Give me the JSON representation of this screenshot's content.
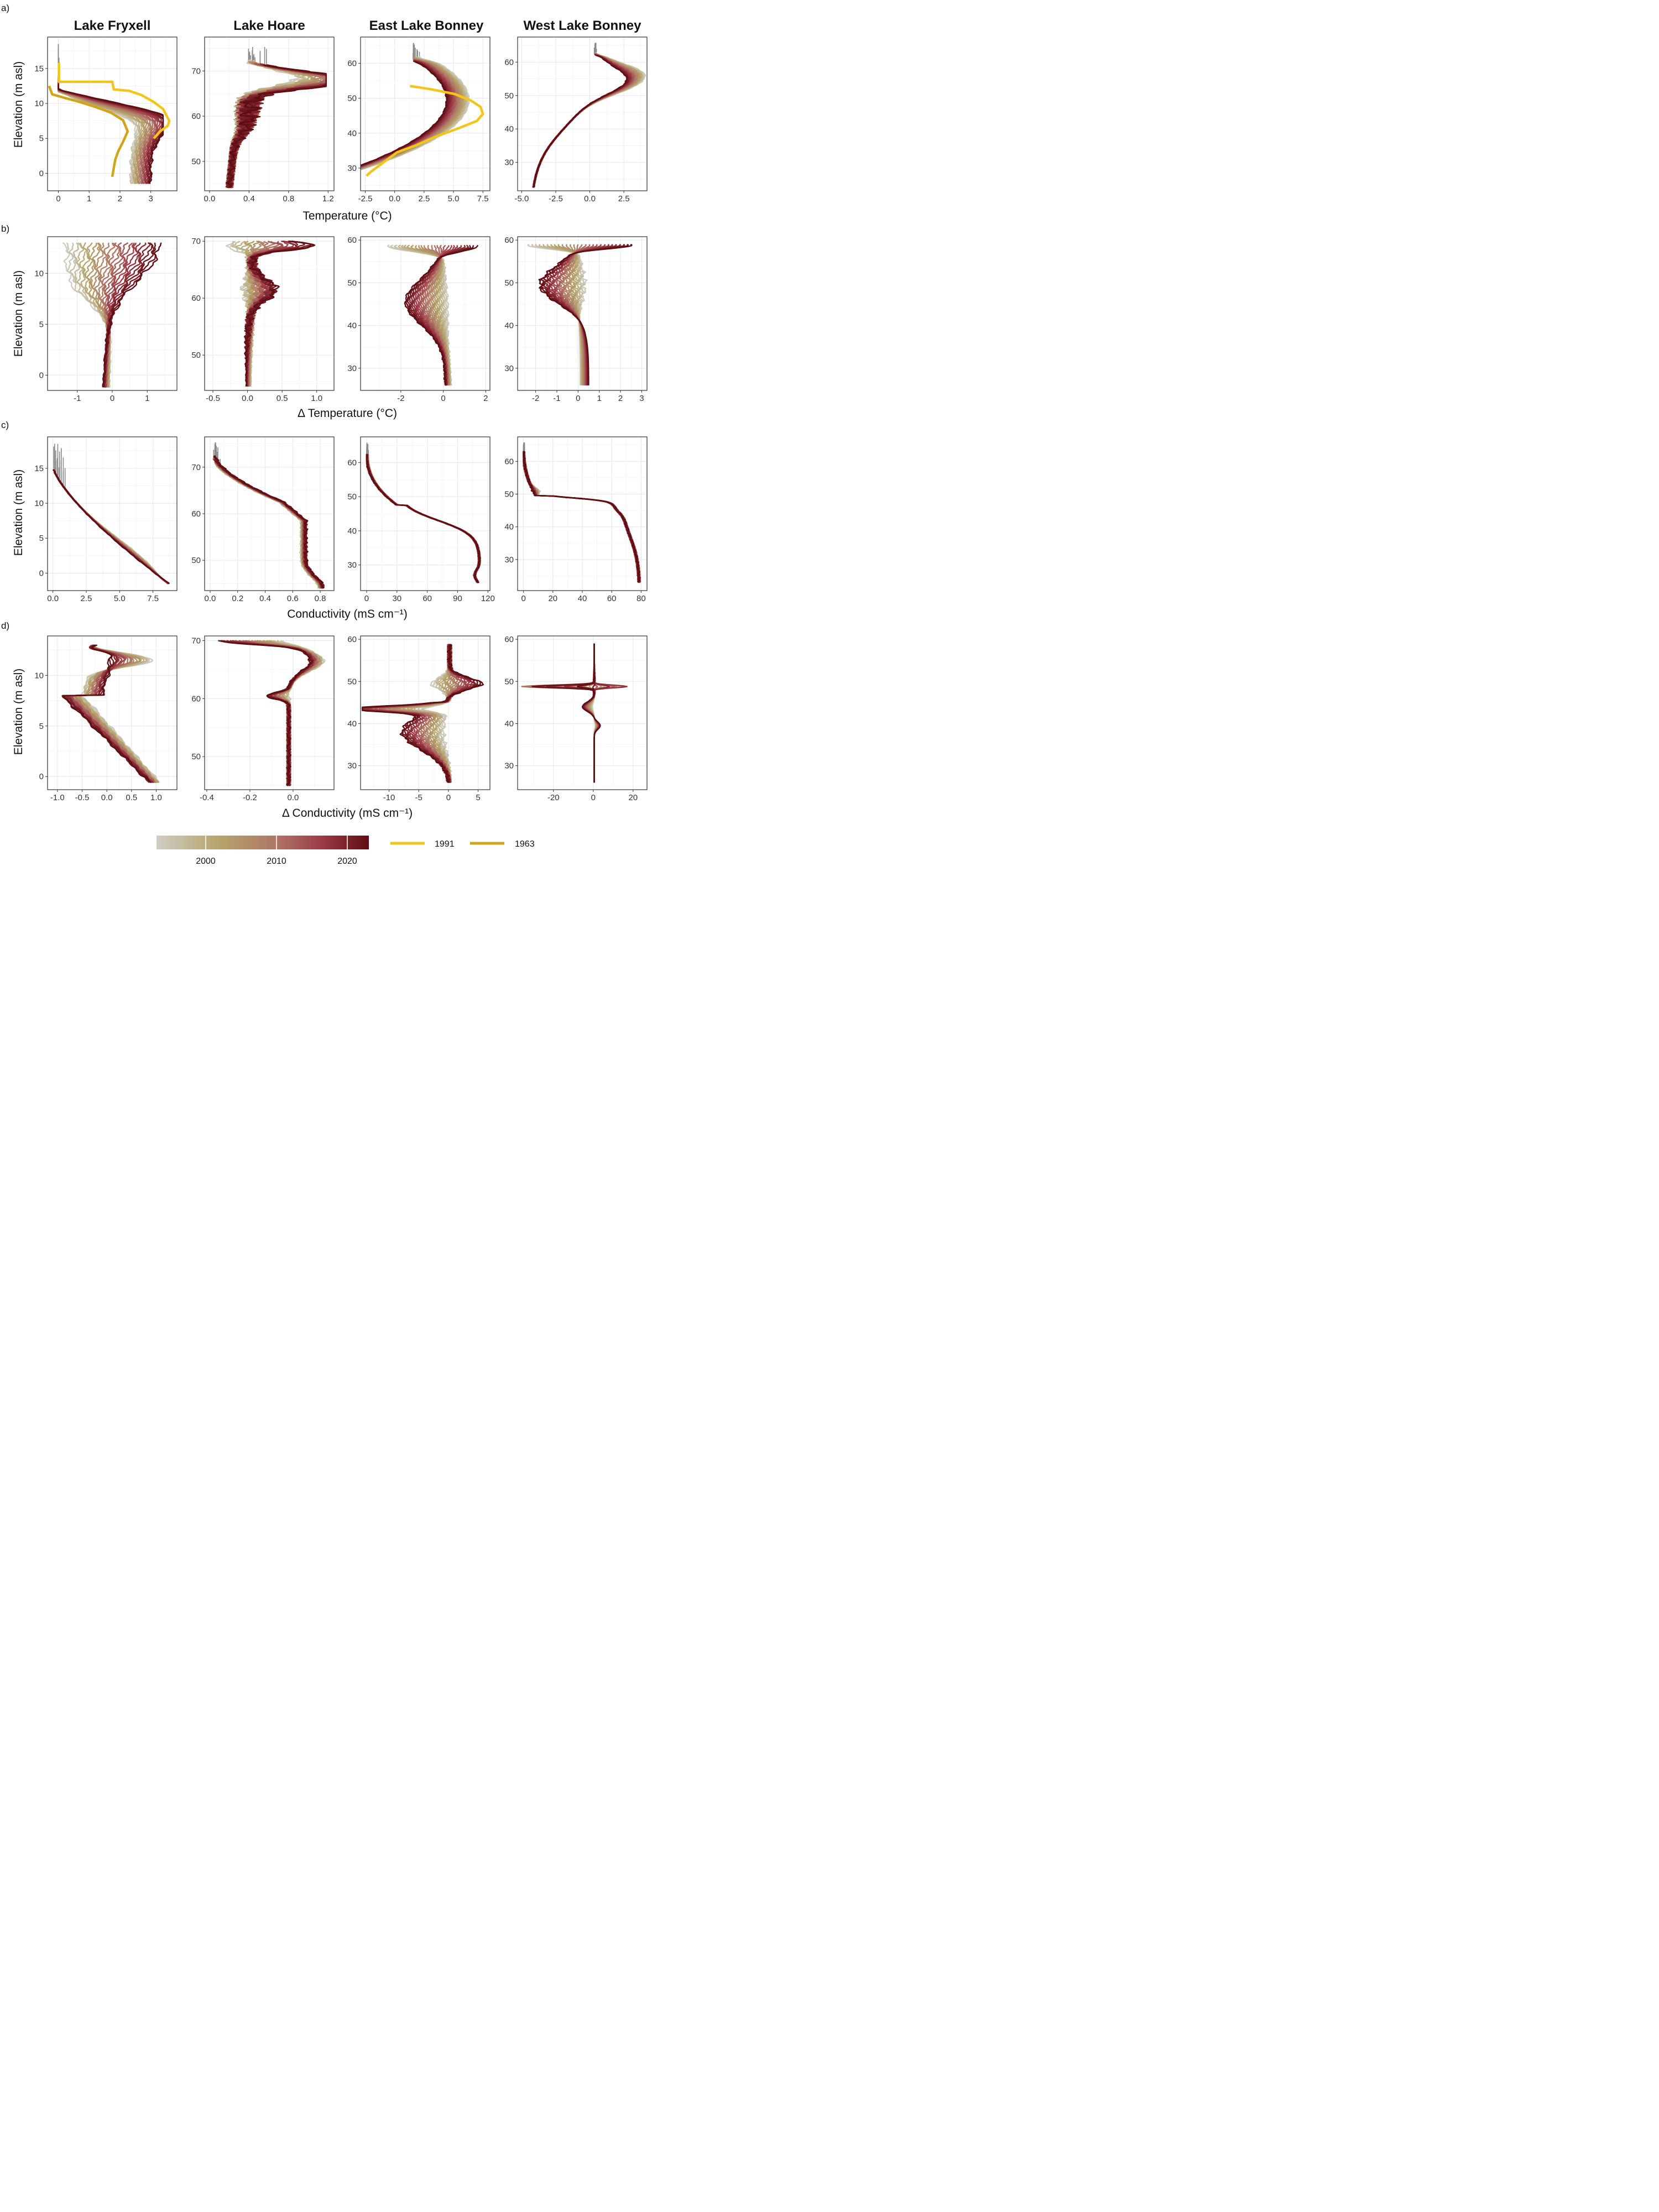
{
  "figure": {
    "row_labels": [
      "a)",
      "b)",
      "c)",
      "d)"
    ],
    "column_titles": [
      "Lake Fryxell",
      "Lake Hoare",
      "East Lake Bonney",
      "West Lake Bonney"
    ],
    "ylabel": "Elevation (m asl)",
    "xlabels": [
      "Temperature (°C)",
      "Δ Temperature (°C)",
      "Conductivity (mS cm⁻¹)",
      "Δ Conductivity (mS cm⁻¹)"
    ]
  },
  "colors": {
    "gradient_start": "#cfcdc2",
    "gradient_mid1": "#b5a36a",
    "gradient_mid2": "#b07a68",
    "gradient_mid3": "#9c3a47",
    "gradient_end": "#5e0d12",
    "line_1991": "#f3c51a",
    "line_1963": "#d1a51a",
    "ice_grey": "#8a8a8a",
    "panel_border": "#333333",
    "grid": "#e8e8e8"
  },
  "legend": {
    "colorbar_ticks": [
      "2000",
      "2010",
      "2020"
    ],
    "colorbar_range": [
      1993,
      2023
    ],
    "lines": [
      {
        "label": "1991",
        "color": "#f3c51a"
      },
      {
        "label": "1963",
        "color": "#d1a51a"
      }
    ]
  },
  "chart_data": [
    {
      "type": "line",
      "row": "a",
      "lake": "Lake Fryxell",
      "xlim": [
        -0.35,
        3.85
      ],
      "ylim": [
        -2.5,
        19.5
      ],
      "xticks": [
        0,
        1,
        2,
        3
      ],
      "xtick_labels": [
        "0",
        "1",
        "2",
        "3"
      ],
      "yticks": [
        0,
        5,
        10,
        15
      ],
      "ytick_labels": [
        "0",
        "5",
        "10",
        "15"
      ],
      "profile": {
        "kind": "fryxT",
        "ymin": -1.5,
        "ymax": 14.8,
        "ice_top": 18.5
      },
      "historic": [
        {
          "name": "1991",
          "points": [
            [
              0.02,
              15.8
            ],
            [
              0.02,
              13.1
            ],
            [
              1.75,
              13.1
            ],
            [
              1.8,
              12.0
            ],
            [
              2.3,
              11.8
            ],
            [
              2.7,
              11.2
            ],
            [
              3.1,
              10.2
            ],
            [
              3.4,
              9.2
            ],
            [
              3.6,
              7.5
            ],
            [
              3.55,
              6.8
            ],
            [
              3.3,
              6.0
            ],
            [
              3.1,
              5.0
            ]
          ]
        },
        {
          "name": "1963",
          "points": [
            [
              -0.3,
              12.5
            ],
            [
              -0.2,
              11.3
            ],
            [
              0.2,
              10.8
            ],
            [
              0.7,
              10.2
            ],
            [
              1.2,
              9.5
            ],
            [
              1.7,
              8.7
            ],
            [
              2.1,
              7.6
            ],
            [
              2.25,
              6.0
            ],
            [
              2.1,
              4.5
            ],
            [
              1.95,
              3.2
            ],
            [
              1.85,
              2.0
            ],
            [
              1.8,
              0.8
            ],
            [
              1.75,
              -0.5
            ]
          ]
        }
      ]
    },
    {
      "type": "line",
      "row": "a",
      "lake": "Lake Hoare",
      "xlim": [
        -0.05,
        1.26
      ],
      "ylim": [
        43.5,
        77.5
      ],
      "xticks": [
        0.0,
        0.4,
        0.8,
        1.2
      ],
      "xtick_labels": [
        "0.0",
        "0.4",
        "0.8",
        "1.2"
      ],
      "yticks": [
        50,
        60,
        70
      ],
      "ytick_labels": [
        "50",
        "60",
        "70"
      ],
      "profile": {
        "kind": "hoareT",
        "ymin": 44.2,
        "ymax": 72.5,
        "ice_top": 75.3
      }
    },
    {
      "type": "line",
      "row": "a",
      "lake": "East Lake Bonney",
      "xlim": [
        -2.9,
        8.1
      ],
      "ylim": [
        23.5,
        67.5
      ],
      "xticks": [
        -2.5,
        0.0,
        2.5,
        5.0,
        7.5
      ],
      "xtick_labels": [
        "-2.5",
        "0.0",
        "2.5",
        "5.0",
        "7.5"
      ],
      "yticks": [
        30,
        40,
        50,
        60
      ],
      "ytick_labels": [
        "30",
        "40",
        "50",
        "60"
      ],
      "profile": {
        "kind": "elbT",
        "ymin": 24.5,
        "ymax": 62.5,
        "ice_top": 65.8
      },
      "historic": [
        {
          "name": "1991",
          "points": [
            [
              1.3,
              53.5
            ],
            [
              3.2,
              52.5
            ],
            [
              5.1,
              51.2
            ],
            [
              6.5,
              49.3
            ],
            [
              7.3,
              47.5
            ],
            [
              7.5,
              45.5
            ],
            [
              7.0,
              43.5
            ],
            [
              5.5,
              41.5
            ],
            [
              3.5,
              39.0
            ],
            [
              1.8,
              36.5
            ],
            [
              0.2,
              34.5
            ],
            [
              -1.0,
              31.5
            ],
            [
              -2.0,
              29.0
            ],
            [
              -2.4,
              27.8
            ]
          ]
        }
      ]
    },
    {
      "type": "line",
      "row": "a",
      "lake": "West Lake Bonney",
      "xlim": [
        -5.3,
        4.2
      ],
      "ylim": [
        21.5,
        67.5
      ],
      "xticks": [
        -5.0,
        -2.5,
        0.0,
        2.5
      ],
      "xtick_labels": [
        "-5.0",
        "-2.5",
        "0.0",
        "2.5"
      ],
      "yticks": [
        30,
        40,
        50,
        60
      ],
      "ytick_labels": [
        "30",
        "40",
        "50",
        "60"
      ],
      "profile": {
        "kind": "wlbT",
        "ymin": 22.5,
        "ymax": 63.0,
        "ice_top": 65.8
      }
    },
    {
      "type": "line",
      "row": "b",
      "lake": "Lake Fryxell",
      "xlim": [
        -1.85,
        1.85
      ],
      "ylim": [
        -1.5,
        13.6
      ],
      "xticks": [
        -1,
        0,
        1
      ],
      "xtick_labels": [
        "-1",
        "0",
        "1"
      ],
      "yticks": [
        0,
        5,
        10
      ],
      "ytick_labels": [
        "0",
        "5",
        "10"
      ],
      "profile": {
        "kind": "fryxDT",
        "ymin": -1.2,
        "ymax": 13.0
      }
    },
    {
      "type": "line",
      "row": "b",
      "lake": "Lake Hoare",
      "xlim": [
        -0.62,
        1.25
      ],
      "ylim": [
        43.8,
        70.8
      ],
      "xticks": [
        -0.5,
        0.0,
        0.5,
        1.0
      ],
      "xtick_labels": [
        "-0.5",
        "0.0",
        "0.5",
        "1.0"
      ],
      "yticks": [
        50,
        60,
        70
      ],
      "ytick_labels": [
        "50",
        "60",
        "70"
      ],
      "profile": {
        "kind": "hoareDT",
        "ymin": 44.5,
        "ymax": 70.0
      }
    },
    {
      "type": "line",
      "row": "b",
      "lake": "East Lake Bonney",
      "xlim": [
        -3.9,
        2.2
      ],
      "ylim": [
        24.8,
        60.8
      ],
      "xticks": [
        -2,
        0,
        2
      ],
      "xtick_labels": [
        "-2",
        "0",
        "2"
      ],
      "yticks": [
        30,
        40,
        50,
        60
      ],
      "ytick_labels": [
        "30",
        "40",
        "50",
        "60"
      ],
      "profile": {
        "kind": "elbDT",
        "ymin": 26.0,
        "ymax": 58.8
      }
    },
    {
      "type": "line",
      "row": "b",
      "lake": "West Lake Bonney",
      "xlim": [
        -2.85,
        3.25
      ],
      "ylim": [
        24.8,
        60.8
      ],
      "xticks": [
        -2,
        -1,
        0,
        1,
        2,
        3
      ],
      "xtick_labels": [
        "-2",
        "-1",
        "0",
        "1",
        "2",
        "3"
      ],
      "yticks": [
        30,
        40,
        50,
        60
      ],
      "ytick_labels": [
        "30",
        "40",
        "50",
        "60"
      ],
      "profile": {
        "kind": "wlbDT",
        "ymin": 26.0,
        "ymax": 59.0
      }
    },
    {
      "type": "line",
      "row": "c",
      "lake": "Lake Fryxell",
      "xlim": [
        -0.4,
        9.3
      ],
      "ylim": [
        -2.5,
        19.5
      ],
      "xticks": [
        0.0,
        2.5,
        5.0,
        7.5
      ],
      "xtick_labels": [
        "0.0",
        "2.5",
        "5.0",
        "7.5"
      ],
      "yticks": [
        0,
        5,
        10,
        15
      ],
      "ytick_labels": [
        "0",
        "5",
        "10",
        "15"
      ],
      "profile": {
        "kind": "fryxC",
        "ymin": -1.5,
        "ymax": 15.2,
        "ice_top": 18.5
      }
    },
    {
      "type": "line",
      "row": "c",
      "lake": "Lake Hoare",
      "xlim": [
        -0.04,
        0.9
      ],
      "ylim": [
        43.5,
        76.5
      ],
      "xticks": [
        0.0,
        0.2,
        0.4,
        0.6,
        0.8
      ],
      "xtick_labels": [
        "0.0",
        "0.2",
        "0.4",
        "0.6",
        "0.8"
      ],
      "yticks": [
        50,
        60,
        70
      ],
      "ytick_labels": [
        "50",
        "60",
        "70"
      ],
      "profile": {
        "kind": "hoareC",
        "ymin": 44.0,
        "ymax": 72.5,
        "ice_top": 75.3
      }
    },
    {
      "type": "line",
      "row": "c",
      "lake": "East Lake Bonney",
      "xlim": [
        -6,
        122
      ],
      "ylim": [
        22.5,
        67.5
      ],
      "xticks": [
        0,
        30,
        60,
        90,
        120
      ],
      "xtick_labels": [
        "0",
        "30",
        "60",
        "90",
        "120"
      ],
      "yticks": [
        30,
        40,
        50,
        60
      ],
      "ytick_labels": [
        "30",
        "40",
        "50",
        "60"
      ],
      "profile": {
        "kind": "elbC",
        "ymin": 24.8,
        "ymax": 62.8,
        "ice_top": 65.8
      }
    },
    {
      "type": "line",
      "row": "c",
      "lake": "West Lake Bonney",
      "xlim": [
        -4,
        84
      ],
      "ylim": [
        20.5,
        67.5
      ],
      "xticks": [
        0,
        20,
        40,
        60,
        80
      ],
      "xtick_labels": [
        "0",
        "20",
        "40",
        "60",
        "80"
      ],
      "yticks": [
        30,
        40,
        50,
        60
      ],
      "ytick_labels": [
        "30",
        "40",
        "50",
        "60"
      ],
      "profile": {
        "kind": "wlbC",
        "ymin": 23.0,
        "ymax": 63.3,
        "ice_top": 65.8
      }
    },
    {
      "type": "line",
      "row": "d",
      "lake": "Lake Fryxell",
      "xlim": [
        -1.2,
        1.42
      ],
      "ylim": [
        -1.3,
        13.9
      ],
      "xticks": [
        -1.0,
        -0.5,
        0.0,
        0.5,
        1.0
      ],
      "xtick_labels": [
        "-1.0",
        "-0.5",
        "0.0",
        "0.5",
        "1.0"
      ],
      "yticks": [
        0,
        5,
        10
      ],
      "ytick_labels": [
        "0",
        "5",
        "10"
      ],
      "profile": {
        "kind": "fryxDC",
        "ymin": -0.6,
        "ymax": 13.0
      }
    },
    {
      "type": "line",
      "row": "d",
      "lake": "Lake Hoare",
      "xlim": [
        -0.41,
        0.19
      ],
      "ylim": [
        44.3,
        70.8
      ],
      "xticks": [
        -0.4,
        -0.2,
        0.0
      ],
      "xtick_labels": [
        "-0.4",
        "-0.2",
        "0.0"
      ],
      "yticks": [
        50,
        60,
        70
      ],
      "ytick_labels": [
        "50",
        "60",
        "70"
      ],
      "profile": {
        "kind": "hoareDC",
        "ymin": 45.0,
        "ymax": 70.0
      }
    },
    {
      "type": "line",
      "row": "d",
      "lake": "East Lake Bonney",
      "xlim": [
        -14.8,
        7.0
      ],
      "ylim": [
        24.3,
        60.8
      ],
      "xticks": [
        -10,
        -5,
        0,
        5
      ],
      "xtick_labels": [
        "-10",
        "-5",
        "0",
        "5"
      ],
      "yticks": [
        30,
        40,
        50,
        60
      ],
      "ytick_labels": [
        "30",
        "40",
        "50",
        "60"
      ],
      "profile": {
        "kind": "elbDC",
        "ymin": 26.0,
        "ymax": 58.8
      }
    },
    {
      "type": "line",
      "row": "d",
      "lake": "West Lake Bonney",
      "xlim": [
        -38,
        27
      ],
      "ylim": [
        24.3,
        60.8
      ],
      "xticks": [
        -20,
        0,
        20
      ],
      "xtick_labels": [
        "-20",
        "0",
        "20"
      ],
      "yticks": [
        30,
        40,
        50,
        60
      ],
      "ytick_labels": [
        "30",
        "40",
        "50",
        "60"
      ],
      "profile": {
        "kind": "wlbDC",
        "ymin": 26.0,
        "ymax": 59.0
      }
    }
  ]
}
